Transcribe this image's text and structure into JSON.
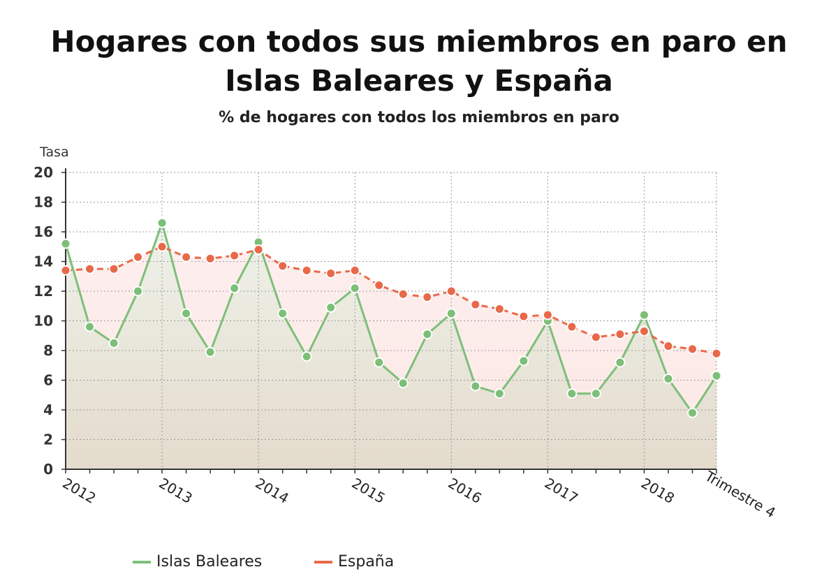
{
  "title_line1": "Hogares con todos sus miembros en paro en",
  "title_line2": "Islas Baleares y España",
  "subtitle": "% de hogares con todos los miembros en paro",
  "chart_data": {
    "type": "line",
    "ylabel": "Tasa",
    "xlabel": "Trimestre 4",
    "ylim": [
      0,
      20
    ],
    "yticks": [
      0,
      2,
      4,
      6,
      8,
      10,
      12,
      14,
      16,
      18,
      20
    ],
    "year_labels": [
      "2012",
      "2013",
      "2014",
      "2015",
      "2016",
      "2017",
      "2018"
    ],
    "x": [
      "2012T1",
      "2012T2",
      "2012T3",
      "2012T4",
      "2013T1",
      "2013T2",
      "2013T3",
      "2013T4",
      "2014T1",
      "2014T2",
      "2014T3",
      "2014T4",
      "2015T1",
      "2015T2",
      "2015T3",
      "2015T4",
      "2016T1",
      "2016T2",
      "2016T3",
      "2016T4",
      "2017T1",
      "2017T2",
      "2017T3",
      "2017T4",
      "2018T1",
      "2018T2",
      "2018T3",
      "2018T4"
    ],
    "grid": true,
    "series": [
      {
        "name": "Islas Baleares",
        "color": "#7dbf78",
        "line_style": "solid",
        "values": [
          15.2,
          9.6,
          8.5,
          12.0,
          16.6,
          10.5,
          7.9,
          12.2,
          15.3,
          10.5,
          7.6,
          10.9,
          12.2,
          7.2,
          5.8,
          9.1,
          10.5,
          5.6,
          5.1,
          7.3,
          10.0,
          5.1,
          5.1,
          7.2,
          10.4,
          6.1,
          3.8,
          6.3
        ]
      },
      {
        "name": "España",
        "color": "#e8694a",
        "line_style": "dashed",
        "values": [
          13.4,
          13.5,
          13.5,
          14.3,
          15.0,
          14.3,
          14.2,
          14.4,
          14.8,
          13.7,
          13.4,
          13.2,
          13.4,
          12.4,
          11.8,
          11.6,
          12.0,
          11.1,
          10.8,
          10.3,
          10.4,
          9.6,
          8.9,
          9.1,
          9.3,
          8.3,
          8.1,
          7.8
        ]
      }
    ]
  }
}
